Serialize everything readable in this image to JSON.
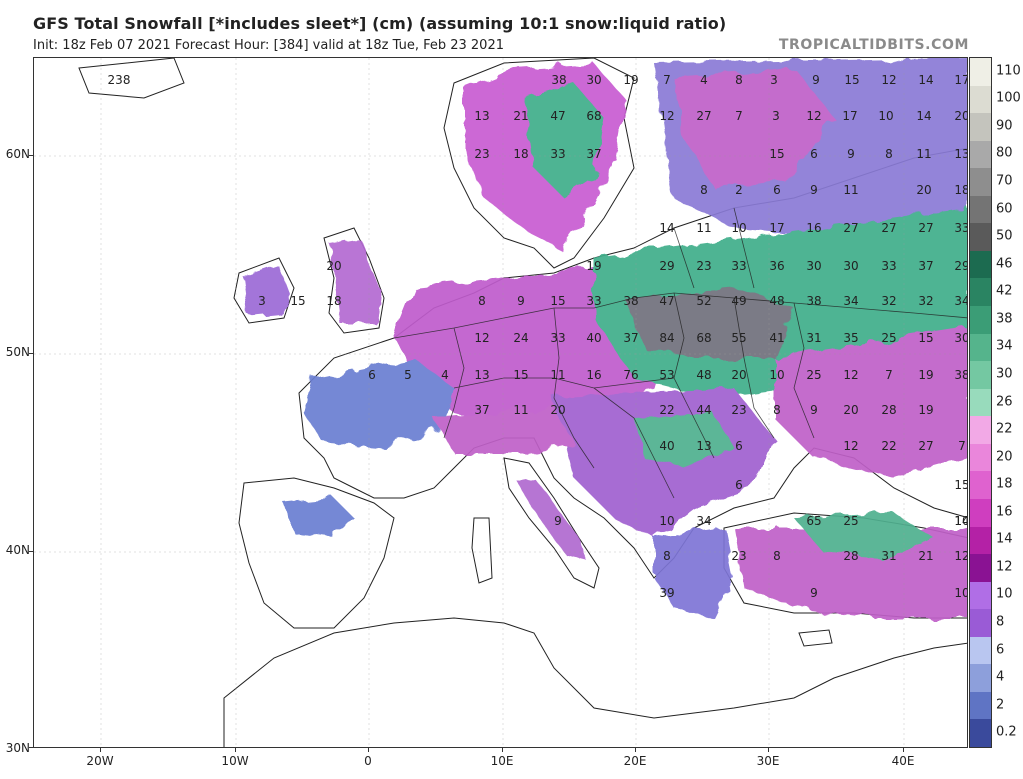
{
  "header": {
    "title": "GFS Total Snowfall [*includes sleet*] (cm) (assuming 10:1 snow:liquid ratio)",
    "subtitle": "Init: 18z Feb 07 2021   Forecast Hour: [384]   valid at 18z Tue, Feb 23 2021",
    "brand": "TROPICALTIDBITS.COM"
  },
  "map": {
    "lat_labels": [
      "60N",
      "50N",
      "40N",
      "30N"
    ],
    "lon_labels": [
      "20W",
      "10W",
      "0",
      "10E",
      "20E",
      "30E",
      "40E"
    ],
    "colors": {
      "land": "#ffffff",
      "snow_light": "#8f9ad6",
      "snow_mid": "#c060c8",
      "snow_heavy": "#3fae8a",
      "snow_deep": "#7c7c88",
      "border": "#222222"
    },
    "snowfall_values": [
      {
        "v": "238"
      },
      {
        "v": "38"
      },
      {
        "v": "30"
      },
      {
        "v": "19"
      },
      {
        "v": "7"
      },
      {
        "v": "4"
      },
      {
        "v": "8"
      },
      {
        "v": "3"
      },
      {
        "v": "9"
      },
      {
        "v": "15"
      },
      {
        "v": "12"
      },
      {
        "v": "14"
      },
      {
        "v": "17"
      },
      {
        "v": "13"
      },
      {
        "v": "21"
      },
      {
        "v": "47"
      },
      {
        "v": "68"
      },
      {
        "v": "12"
      },
      {
        "v": "27"
      },
      {
        "v": "7"
      },
      {
        "v": "3"
      },
      {
        "v": "12"
      },
      {
        "v": "17"
      },
      {
        "v": "10"
      },
      {
        "v": "14"
      },
      {
        "v": "20"
      },
      {
        "v": "23"
      },
      {
        "v": "18"
      },
      {
        "v": "33"
      },
      {
        "v": "37"
      },
      {
        "v": "15"
      },
      {
        "v": "6"
      },
      {
        "v": "9"
      },
      {
        "v": "8"
      },
      {
        "v": "11"
      },
      {
        "v": "13"
      },
      {
        "v": "8"
      },
      {
        "v": "2"
      },
      {
        "v": "6"
      },
      {
        "v": "9"
      },
      {
        "v": "11"
      },
      {
        "v": "20"
      },
      {
        "v": "18"
      },
      {
        "v": "14"
      },
      {
        "v": "11"
      },
      {
        "v": "10"
      },
      {
        "v": "17"
      },
      {
        "v": "16"
      },
      {
        "v": "27"
      },
      {
        "v": "27"
      },
      {
        "v": "27"
      },
      {
        "v": "33"
      },
      {
        "v": "20"
      },
      {
        "v": "19"
      },
      {
        "v": "29"
      },
      {
        "v": "23"
      },
      {
        "v": "33"
      },
      {
        "v": "36"
      },
      {
        "v": "30"
      },
      {
        "v": "30"
      },
      {
        "v": "33"
      },
      {
        "v": "37"
      },
      {
        "v": "29"
      },
      {
        "v": "3"
      },
      {
        "v": "15"
      },
      {
        "v": "18"
      },
      {
        "v": "8"
      },
      {
        "v": "9"
      },
      {
        "v": "15"
      },
      {
        "v": "33"
      },
      {
        "v": "38"
      },
      {
        "v": "47"
      },
      {
        "v": "52"
      },
      {
        "v": "49"
      },
      {
        "v": "48"
      },
      {
        "v": "38"
      },
      {
        "v": "34"
      },
      {
        "v": "32"
      },
      {
        "v": "32"
      },
      {
        "v": "34"
      },
      {
        "v": "12"
      },
      {
        "v": "24"
      },
      {
        "v": "33"
      },
      {
        "v": "40"
      },
      {
        "v": "37"
      },
      {
        "v": "84"
      },
      {
        "v": "68"
      },
      {
        "v": "55"
      },
      {
        "v": "41"
      },
      {
        "v": "31"
      },
      {
        "v": "35"
      },
      {
        "v": "25"
      },
      {
        "v": "15"
      },
      {
        "v": "30"
      },
      {
        "v": "6"
      },
      {
        "v": "5"
      },
      {
        "v": "4"
      },
      {
        "v": "13"
      },
      {
        "v": "15"
      },
      {
        "v": "11"
      },
      {
        "v": "16"
      },
      {
        "v": "76"
      },
      {
        "v": "53"
      },
      {
        "v": "48"
      },
      {
        "v": "20"
      },
      {
        "v": "10"
      },
      {
        "v": "25"
      },
      {
        "v": "12"
      },
      {
        "v": "7"
      },
      {
        "v": "19"
      },
      {
        "v": "38"
      },
      {
        "v": "37"
      },
      {
        "v": "11"
      },
      {
        "v": "20"
      },
      {
        "v": "22"
      },
      {
        "v": "44"
      },
      {
        "v": "23"
      },
      {
        "v": "8"
      },
      {
        "v": "9"
      },
      {
        "v": "20"
      },
      {
        "v": "28"
      },
      {
        "v": "19"
      },
      {
        "v": "40"
      },
      {
        "v": "13"
      },
      {
        "v": "6"
      },
      {
        "v": "12"
      },
      {
        "v": "22"
      },
      {
        "v": "27"
      },
      {
        "v": "7"
      },
      {
        "v": "6"
      },
      {
        "v": "15"
      },
      {
        "v": "10"
      },
      {
        "v": "9"
      },
      {
        "v": "10"
      },
      {
        "v": "34"
      },
      {
        "v": "65"
      },
      {
        "v": "25"
      },
      {
        "v": "14"
      },
      {
        "v": "8"
      },
      {
        "v": "23"
      },
      {
        "v": "8"
      },
      {
        "v": "28"
      },
      {
        "v": "31"
      },
      {
        "v": "21"
      },
      {
        "v": "12"
      },
      {
        "v": "39"
      },
      {
        "v": "9"
      },
      {
        "v": "10"
      }
    ]
  },
  "legend": {
    "unit": "cm",
    "items": [
      {
        "label": "110",
        "color": "#efefe6"
      },
      {
        "label": "100",
        "color": "#dcdcd2"
      },
      {
        "label": "90",
        "color": "#c4c4bd"
      },
      {
        "label": "80",
        "color": "#a9a9a9"
      },
      {
        "label": "70",
        "color": "#8e8e8e"
      },
      {
        "label": "60",
        "color": "#747474"
      },
      {
        "label": "50",
        "color": "#5a5a5a"
      },
      {
        "label": "46",
        "color": "#1c6b50"
      },
      {
        "label": "42",
        "color": "#2a8462"
      },
      {
        "label": "38",
        "color": "#3b9d76"
      },
      {
        "label": "34",
        "color": "#55b48c"
      },
      {
        "label": "30",
        "color": "#74c8a2"
      },
      {
        "label": "26",
        "color": "#98dbbc"
      },
      {
        "label": "22",
        "color": "#f2a9e6"
      },
      {
        "label": "20",
        "color": "#ea86db"
      },
      {
        "label": "18",
        "color": "#df62cf"
      },
      {
        "label": "16",
        "color": "#cf3ebf"
      },
      {
        "label": "14",
        "color": "#b421a6"
      },
      {
        "label": "12",
        "color": "#8a1293"
      },
      {
        "label": "10",
        "color": "#b06ee6"
      },
      {
        "label": "8",
        "color": "#9a5bd6"
      },
      {
        "label": "6",
        "color": "#b9c6f0"
      },
      {
        "label": "4",
        "color": "#8d9fdb"
      },
      {
        "label": "2",
        "color": "#5f74c4"
      },
      {
        "label": "0.2",
        "color": "#3a4a9c"
      }
    ]
  }
}
